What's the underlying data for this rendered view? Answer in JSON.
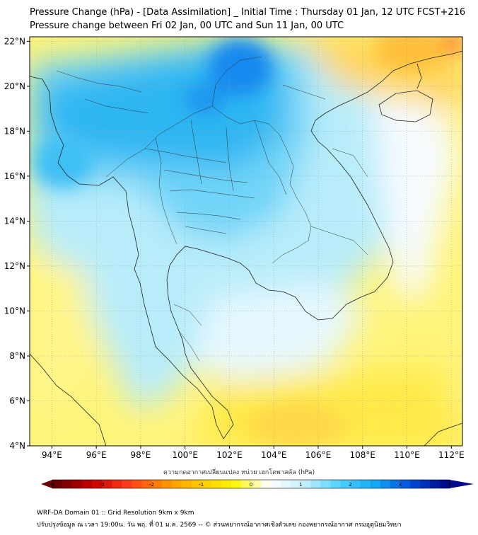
{
  "title": "Pressure Change (hPa) - [Data Assimilation] _ Initial Time : Thursday 01 Jan, 12 UTC FCST+216",
  "subtitle": "Pressure change between Fri 02 Jan, 00 UTC and Sun 11 Jan, 00 UTC",
  "map": {
    "lon_range": [
      93,
      112.5
    ],
    "lat_range": [
      4,
      22.2
    ],
    "lon_ticks": [
      "94°E",
      "96°E",
      "98°E",
      "100°E",
      "102°E",
      "104°E",
      "106°E",
      "108°E",
      "110°E",
      "112°E"
    ],
    "lat_ticks": [
      "22°N",
      "20°N",
      "18°N",
      "16°N",
      "14°N",
      "12°N",
      "10°N",
      "8°N",
      "6°N",
      "4°N"
    ],
    "grid": true
  },
  "colorbar": {
    "label": "ความกดอากาศเปลี่ยนแปลง หน่วย เฮกโตพาสคัล (hPa)",
    "min": -4,
    "max": 4,
    "ticks": [
      "-4",
      "-3",
      "-2",
      "-1",
      "0",
      "1",
      "2",
      "3",
      "4"
    ],
    "colors": [
      "#6b0000",
      "#c80000",
      "#ff3c1e",
      "#ff8c00",
      "#ffc800",
      "#fff500",
      "#ffffff",
      "#c8f0ff",
      "#50d2ff",
      "#14aaf5",
      "#0050dc",
      "#000a8c"
    ]
  },
  "footer": {
    "line1": "WRF-DA Domain 01 :: Grid Resolution 9km x 9km",
    "line2": "ปรับปรุงข้อมูล ณ เวลา 19:00น. วัน พฤ. ที่ 01 ม.ค. 2569 -- © ส่วนพยากรณ์อากาศเชิงตัวเลข กองพยากรณ์อากาศ กรมอุตุนิยมวิทยา"
  }
}
